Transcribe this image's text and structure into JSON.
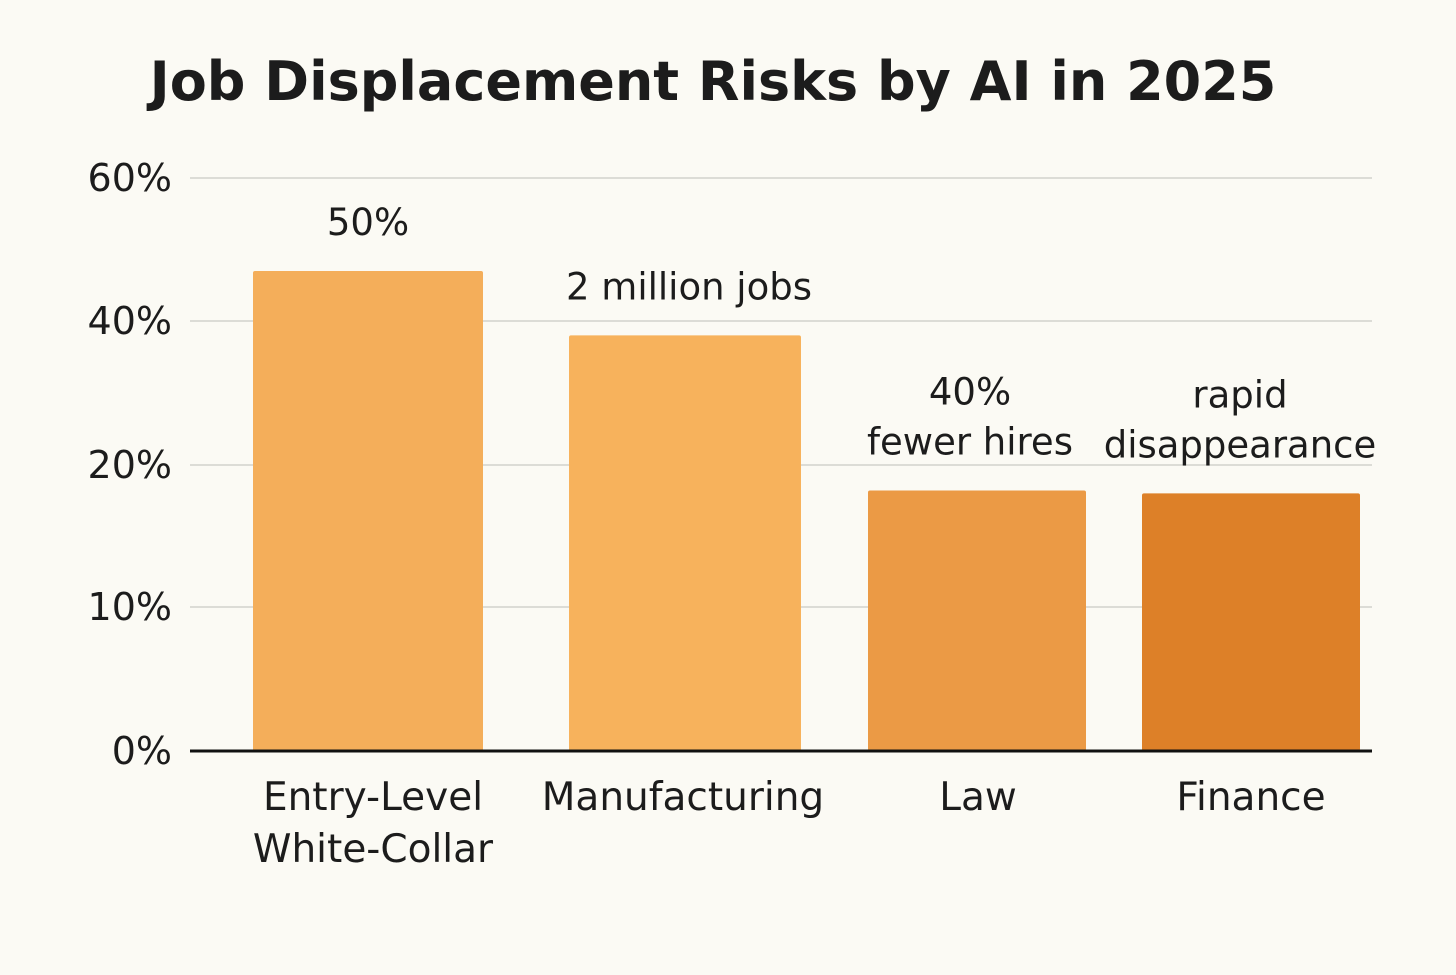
{
  "chart_data": {
    "type": "bar",
    "title": "Job Displacement Risks by AI in 2025",
    "xlabel": "",
    "ylabel": "",
    "ylim": [
      0,
      60
    ],
    "yticks": [
      {
        "value": 0,
        "label": "0%"
      },
      {
        "value": 10,
        "label": "10%"
      },
      {
        "value": 20,
        "label": "20%"
      },
      {
        "value": 40,
        "label": "40%"
      },
      {
        "value": 60,
        "label": "60%"
      }
    ],
    "grid": true,
    "legend": "none",
    "categories": [
      [
        "Entry-Level",
        "White-Collar"
      ],
      [
        "Manufacturing"
      ],
      [
        "Law"
      ],
      [
        "Finance"
      ]
    ],
    "values": [
      47,
      38,
      18.2,
      18
    ],
    "data_labels": [
      [
        "50%"
      ],
      [
        "2 million jobs"
      ],
      [
        "40%",
        "fewer hires"
      ],
      [
        "rapid",
        "disappearance"
      ]
    ],
    "colors": [
      "#f4ae5a",
      "#f7b25c",
      "#eb9a45",
      "#dd8028"
    ]
  }
}
